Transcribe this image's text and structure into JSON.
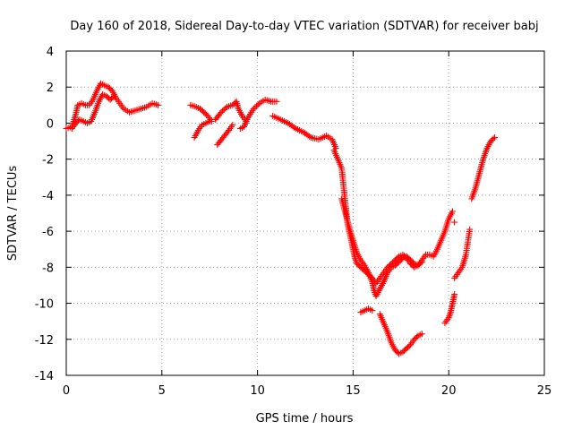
{
  "chart_data": {
    "type": "scatter",
    "title": "Day 160 of 2018, Sidereal Day-to-day VTEC variation (SDTVAR) for receiver babj",
    "xlabel": "GPS time / hours",
    "ylabel": "SDTVAR / TECUs",
    "xlim": [
      0,
      25
    ],
    "ylim": [
      -14,
      4
    ],
    "xticks": [
      "0",
      "5",
      "10",
      "15",
      "20",
      "25"
    ],
    "yticks": [
      "4",
      "2",
      "0",
      "-2",
      "-4",
      "-6",
      "-8",
      "-10",
      "-12",
      "-14"
    ],
    "grid": true,
    "marker": "plus",
    "color": "#ff0000",
    "segments": [
      {
        "x": [
          0.0,
          0.3,
          0.5,
          0.6,
          0.8,
          1.0,
          1.2,
          1.4,
          1.6,
          1.8,
          2.0,
          2.2,
          2.4,
          2.6,
          2.8,
          3.0,
          3.3,
          3.6,
          3.9,
          4.2,
          4.5,
          4.8
        ],
        "y": [
          -0.3,
          -0.2,
          0.5,
          1.0,
          1.1,
          1.0,
          1.0,
          1.3,
          1.8,
          2.2,
          2.1,
          2.0,
          1.8,
          1.4,
          1.1,
          0.8,
          0.6,
          0.7,
          0.8,
          0.9,
          1.1,
          1.0
        ]
      },
      {
        "x": [
          0.3,
          0.5,
          0.7,
          0.9,
          1.1,
          1.3,
          1.5,
          1.7,
          1.9,
          2.1,
          2.3,
          2.5
        ],
        "y": [
          -0.3,
          0.0,
          0.2,
          0.1,
          0.0,
          0.1,
          0.6,
          1.2,
          1.6,
          1.5,
          1.3,
          1.5
        ]
      },
      {
        "x": [
          6.5,
          6.8,
          7.0,
          7.2,
          7.4,
          7.6
        ],
        "y": [
          1.0,
          0.9,
          0.8,
          0.6,
          0.4,
          0.1
        ]
      },
      {
        "x": [
          6.7,
          6.9,
          7.1,
          7.3,
          7.5
        ],
        "y": [
          -0.8,
          -0.4,
          -0.1,
          0.0,
          0.1
        ]
      },
      {
        "x": [
          7.8,
          8.1,
          8.4,
          8.7,
          8.9,
          9.0,
          9.2,
          9.4
        ],
        "y": [
          0.2,
          0.6,
          0.9,
          1.0,
          1.2,
          0.8,
          0.4,
          0.1
        ]
      },
      {
        "x": [
          7.9,
          8.2,
          8.5,
          8.7
        ],
        "y": [
          -1.2,
          -0.8,
          -0.4,
          -0.1
        ]
      },
      {
        "x": [
          9.1,
          9.3,
          9.5,
          9.8,
          10.1,
          10.4,
          10.7,
          11.0
        ],
        "y": [
          -0.3,
          -0.2,
          0.3,
          0.8,
          1.1,
          1.3,
          1.2,
          1.2
        ]
      },
      {
        "x": [
          10.8,
          11.2,
          11.6,
          12.0,
          12.4,
          12.8,
          13.2,
          13.6,
          13.9,
          14.1
        ],
        "y": [
          0.4,
          0.2,
          0.0,
          -0.3,
          -0.5,
          -0.8,
          -0.9,
          -0.7,
          -0.9,
          -1.4
        ]
      },
      {
        "x": [
          14.0,
          14.2,
          14.4,
          14.5,
          14.6,
          14.7,
          14.8,
          14.9,
          15.0,
          15.1,
          15.2,
          15.4,
          15.6,
          15.8,
          16.0,
          16.2,
          16.4,
          16.6,
          16.8,
          17.0,
          17.2,
          17.4,
          17.6,
          17.8,
          18.0,
          18.2,
          18.4,
          18.6,
          18.8,
          19.0,
          19.2,
          19.4,
          19.6,
          19.8,
          20.0,
          20.2
        ],
        "y": [
          -1.5,
          -2.0,
          -2.5,
          -3.5,
          -4.5,
          -5.5,
          -6.0,
          -6.5,
          -7.0,
          -7.5,
          -7.8,
          -8.0,
          -8.2,
          -8.4,
          -8.6,
          -8.9,
          -8.6,
          -8.3,
          -8.0,
          -7.8,
          -7.6,
          -7.4,
          -7.3,
          -7.5,
          -7.8,
          -8.0,
          -7.9,
          -7.6,
          -7.3,
          -7.3,
          -7.4,
          -7.0,
          -6.5,
          -6.0,
          -5.3,
          -4.9
        ]
      },
      {
        "x": [
          14.4,
          14.6,
          14.8,
          15.0,
          15.2,
          15.4,
          15.6,
          15.8,
          16.0,
          16.1,
          16.2,
          16.3,
          16.4,
          16.5,
          16.6,
          16.8,
          17.0,
          17.2,
          17.4,
          17.6,
          17.8,
          18.0,
          18.2,
          18.4,
          18.6
        ],
        "y": [
          -4.2,
          -5.0,
          -5.8,
          -6.5,
          -7.2,
          -7.6,
          -7.9,
          -8.3,
          -8.8,
          -9.3,
          -9.6,
          -9.4,
          -9.2,
          -9.0,
          -8.8,
          -8.3,
          -8.0,
          -7.9,
          -7.7,
          -7.5,
          -7.4,
          -7.6,
          -7.8,
          -7.9,
          -7.7
        ]
      },
      {
        "x": [
          15.4,
          15.6,
          15.8,
          16.0
        ],
        "y": [
          -10.5,
          -10.4,
          -10.3,
          -10.4
        ]
      },
      {
        "x": [
          16.4,
          16.6,
          16.8,
          17.0,
          17.2,
          17.4,
          17.6,
          17.8,
          18.0,
          18.2,
          18.4,
          18.6
        ],
        "y": [
          -10.6,
          -11.1,
          -11.6,
          -12.2,
          -12.6,
          -12.8,
          -12.7,
          -12.5,
          -12.3,
          -12.0,
          -11.8,
          -11.7
        ]
      },
      {
        "x": [
          19.8,
          20.0,
          20.1,
          20.2,
          20.3
        ],
        "y": [
          -11.1,
          -10.8,
          -10.5,
          -10.0,
          -9.5
        ]
      },
      {
        "x": [
          20.3,
          20.5,
          20.7,
          20.9,
          21.0,
          21.1
        ],
        "y": [
          -8.6,
          -8.3,
          -8.0,
          -7.3,
          -6.6,
          -5.9
        ]
      },
      {
        "x": [
          20.3
        ],
        "y": [
          -5.5
        ]
      },
      {
        "x": [
          21.2,
          21.4,
          21.6,
          21.8,
          22.0,
          22.2,
          22.4
        ],
        "y": [
          -4.2,
          -3.6,
          -2.8,
          -2.0,
          -1.4,
          -1.0,
          -0.8
        ]
      }
    ]
  }
}
